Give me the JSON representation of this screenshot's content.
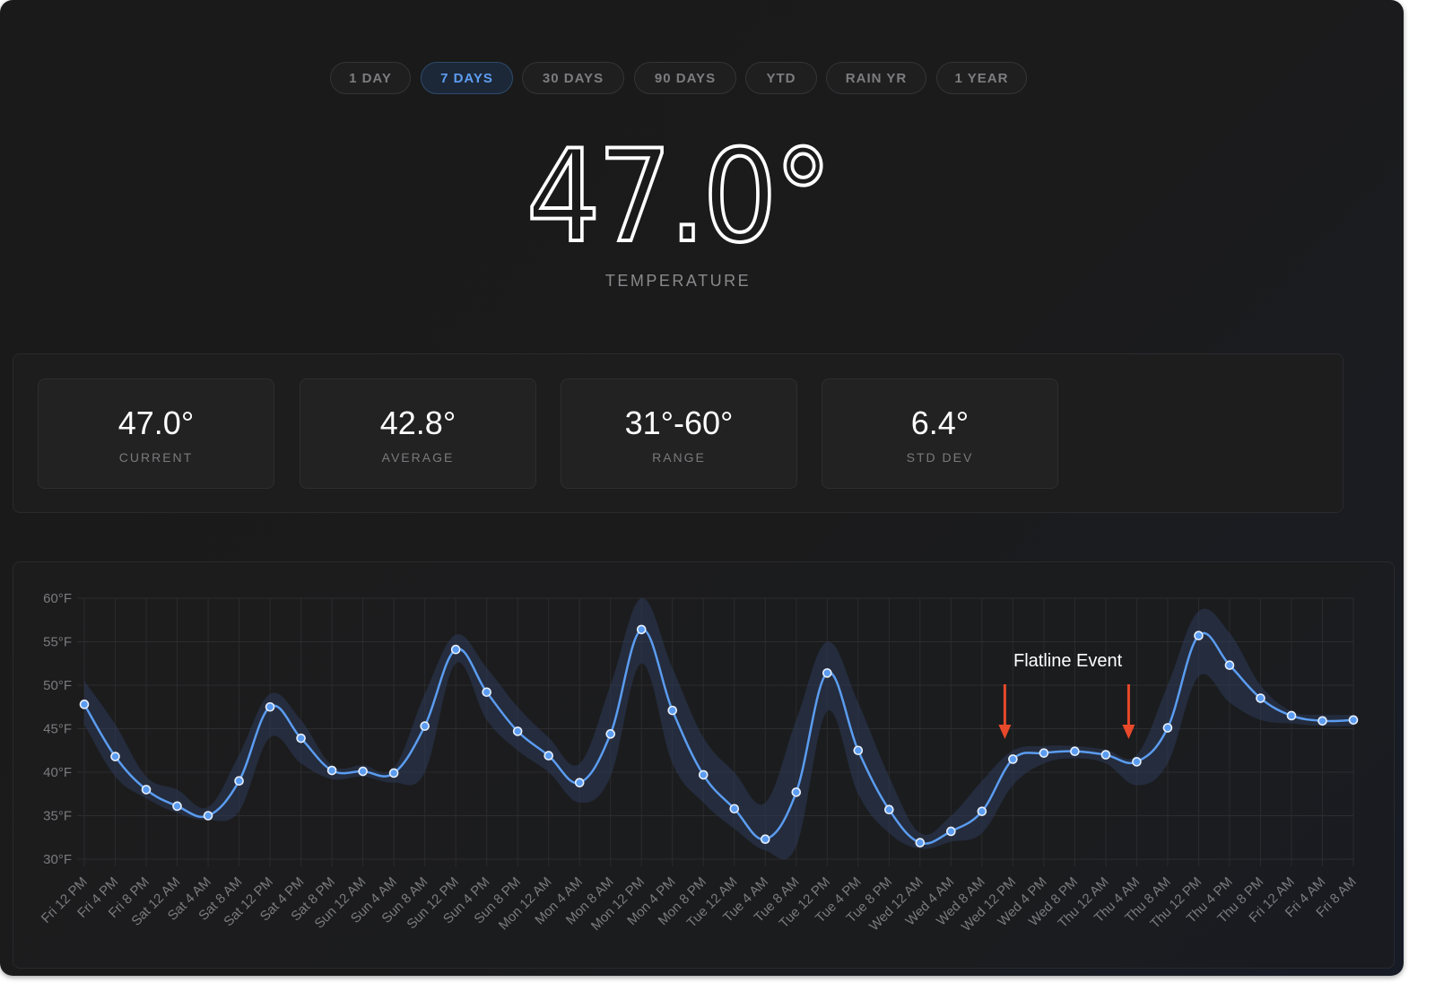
{
  "tabs": [
    {
      "label": "1 DAY",
      "active": false
    },
    {
      "label": "7 DAYS",
      "active": true
    },
    {
      "label": "30 DAYS",
      "active": false
    },
    {
      "label": "90 DAYS",
      "active": false
    },
    {
      "label": "YTD",
      "active": false
    },
    {
      "label": "RAIN YR",
      "active": false
    },
    {
      "label": "1 YEAR",
      "active": false
    }
  ],
  "hero": {
    "value": "47.0°",
    "label": "TEMPERATURE"
  },
  "stats": [
    {
      "value": "47.0°",
      "label": "CURRENT"
    },
    {
      "value": "42.8°",
      "label": "AVERAGE"
    },
    {
      "value": "31°-60°",
      "label": "RANGE"
    },
    {
      "value": "6.4°",
      "label": "STD DEV"
    }
  ],
  "colors": {
    "accent": "#5e9df2",
    "line": "#5b9cf0",
    "band": "#2a3a55",
    "annotation_arrow": "#e8492a",
    "background": "#1a1a1a"
  },
  "chart_data": {
    "type": "line",
    "title": "",
    "xlabel": "",
    "ylabel": "",
    "ylim": [
      30,
      60
    ],
    "yticks": [
      "30°F",
      "35°F",
      "40°F",
      "45°F",
      "50°F",
      "55°F",
      "60°F"
    ],
    "grid": true,
    "legend": "none",
    "categories": [
      "Fri 12 PM",
      "Fri 4 PM",
      "Fri 8 PM",
      "Sat 12 AM",
      "Sat 4 AM",
      "Sat 8 AM",
      "Sat 12 PM",
      "Sat 4 PM",
      "Sat 8 PM",
      "Sun 12 AM",
      "Sun 4 AM",
      "Sun 8 AM",
      "Sun 12 PM",
      "Sun 4 PM",
      "Sun 8 PM",
      "Mon 12 AM",
      "Mon 4 AM",
      "Mon 8 AM",
      "Mon 12 PM",
      "Mon 4 PM",
      "Mon 8 PM",
      "Tue 12 AM",
      "Tue 4 AM",
      "Tue 8 AM",
      "Tue 12 PM",
      "Tue 4 PM",
      "Tue 8 PM",
      "Wed 12 AM",
      "Wed 4 AM",
      "Wed 8 AM",
      "Wed 12 PM",
      "Wed 4 PM",
      "Wed 8 PM",
      "Thu 12 AM",
      "Thu 4 AM",
      "Thu 8 AM",
      "Thu 12 PM",
      "Thu 4 PM",
      "Thu 8 PM",
      "Fri 12 AM",
      "Fri 4 AM",
      "Fri 8 AM"
    ],
    "series": [
      {
        "name": "Temperature",
        "values": [
          47.8,
          41.8,
          38.0,
          36.1,
          35.0,
          39.0,
          47.5,
          43.9,
          40.2,
          40.1,
          39.9,
          45.3,
          54.1,
          49.2,
          44.7,
          41.9,
          38.8,
          44.4,
          56.4,
          47.1,
          39.7,
          35.8,
          32.3,
          37.7,
          51.4,
          42.5,
          35.7,
          31.9,
          33.2,
          35.5,
          41.5,
          42.2,
          42.4,
          42.0,
          41.2,
          45.1,
          55.7,
          52.3,
          48.5,
          46.5,
          45.9,
          46.0
        ]
      }
    ],
    "band": {
      "name": "Min/Max range",
      "upper": [
        50.5,
        45.5,
        39.5,
        38.0,
        36.0,
        42.0,
        49.0,
        46.0,
        40.8,
        40.8,
        40.5,
        49.0,
        55.8,
        52.0,
        47.5,
        44.0,
        41.0,
        50.0,
        60.0,
        52.0,
        44.0,
        40.0,
        36.5,
        46.0,
        55.0,
        48.0,
        39.5,
        33.0,
        35.0,
        39.0,
        42.5,
        43.0,
        43.0,
        42.6,
        42.0,
        50.0,
        58.5,
        56.0,
        50.0,
        47.0,
        46.6,
        46.6
      ],
      "lower": [
        45.5,
        39.5,
        37.0,
        35.3,
        34.5,
        35.5,
        44.0,
        41.0,
        39.2,
        39.5,
        38.8,
        40.0,
        52.5,
        46.0,
        42.5,
        40.0,
        36.5,
        39.5,
        52.5,
        41.0,
        36.5,
        33.5,
        31.0,
        31.5,
        47.0,
        37.5,
        33.0,
        31.2,
        32.0,
        33.0,
        38.5,
        41.0,
        41.6,
        41.0,
        38.5,
        41.0,
        51.0,
        48.0,
        46.0,
        45.6,
        45.3,
        45.3
      ]
    },
    "annotations": [
      {
        "text": "Flatline Event",
        "arrows_at": [
          "Wed 12 PM",
          "Thu 4 AM"
        ]
      }
    ]
  }
}
